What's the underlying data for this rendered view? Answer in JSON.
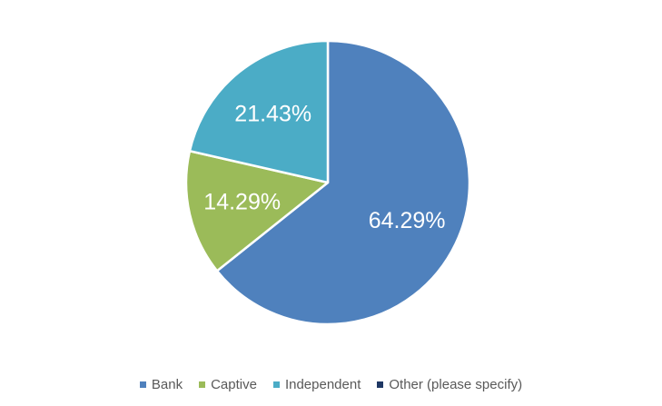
{
  "chart_data": {
    "type": "pie",
    "title": "",
    "categories": [
      "Bank",
      "Captive",
      "Independent",
      "Other (please specify)"
    ],
    "values": [
      64.29,
      14.29,
      21.43,
      0
    ],
    "labels": [
      "64.29%",
      "14.29%",
      "21.43%",
      ""
    ],
    "colors": [
      "#4F81BD",
      "#9BBB59",
      "#4BACC6",
      "#1F3864"
    ],
    "start_angle_deg": 0,
    "direction": "clockwise",
    "slice_border_color": "#ffffff",
    "legend": {
      "position": "bottom",
      "entries": [
        "Bank",
        "Captive",
        "Independent",
        "Other (please specify)"
      ]
    }
  }
}
